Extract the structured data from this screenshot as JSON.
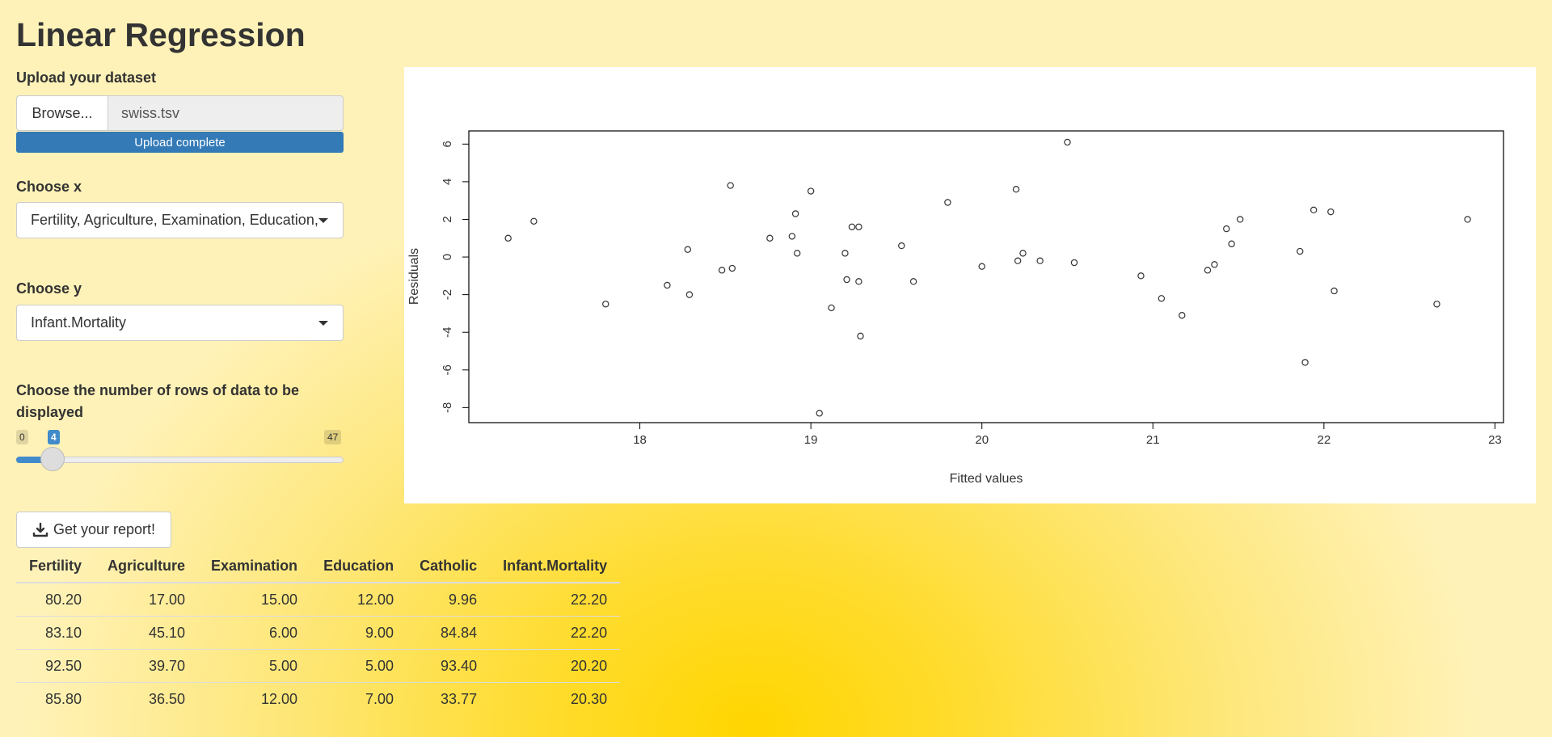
{
  "page": {
    "title": "Linear Regression"
  },
  "upload": {
    "label": "Upload your dataset",
    "browse_label": "Browse...",
    "file_name": "swiss.tsv",
    "status": "Upload complete",
    "progress": 100
  },
  "choose_x": {
    "label": "Choose x",
    "selected": "Fertility, Agriculture, Examination, Education, Catholic"
  },
  "choose_y": {
    "label": "Choose y",
    "selected": "Infant.Mortality"
  },
  "rows_slider": {
    "label": "Choose the number of rows of data to be displayed",
    "min": "0",
    "max": "47",
    "value": "4"
  },
  "report_button": {
    "label": "Get your report!",
    "icon": "download-icon"
  },
  "table": {
    "columns": [
      "Fertility",
      "Agriculture",
      "Examination",
      "Education",
      "Catholic",
      "Infant.Mortality"
    ],
    "rows": [
      [
        "80.20",
        "17.00",
        "15.00",
        "12.00",
        "9.96",
        "22.20"
      ],
      [
        "83.10",
        "45.10",
        "6.00",
        "9.00",
        "84.84",
        "22.20"
      ],
      [
        "92.50",
        "39.70",
        "5.00",
        "5.00",
        "93.40",
        "20.20"
      ],
      [
        "85.80",
        "36.50",
        "12.00",
        "7.00",
        "33.77",
        "20.30"
      ]
    ]
  },
  "chart_data": {
    "type": "scatter",
    "xlabel": "Fitted values",
    "ylabel": "Residuals",
    "xlim": [
      17.0,
      23.05
    ],
    "ylim": [
      -8.8,
      6.7
    ],
    "xticks": [
      "18",
      "19",
      "20",
      "21",
      "22",
      "23"
    ],
    "yticks": [
      "6",
      "4",
      "2",
      "0",
      "-2",
      "-4",
      "-6",
      "-8"
    ],
    "grid": false,
    "x": [
      17.23,
      17.38,
      17.8,
      18.16,
      18.28,
      18.29,
      18.48,
      18.53,
      18.54,
      18.76,
      18.89,
      18.91,
      18.92,
      19.0,
      19.05,
      19.12,
      19.2,
      19.21,
      19.24,
      19.28,
      19.28,
      19.29,
      19.53,
      19.6,
      19.8,
      20.0,
      20.2,
      20.21,
      20.24,
      20.34,
      20.5,
      20.54,
      20.93,
      21.05,
      21.17,
      21.32,
      21.36,
      21.43,
      21.46,
      21.51,
      21.86,
      21.89,
      21.94,
      22.04,
      22.06,
      22.66,
      22.84
    ],
    "y": [
      1.0,
      1.9,
      -2.5,
      -1.5,
      0.4,
      -2.0,
      -0.7,
      3.8,
      -0.6,
      1.0,
      1.1,
      2.3,
      0.2,
      3.5,
      -8.3,
      -2.7,
      0.2,
      -1.2,
      1.6,
      1.6,
      -1.3,
      -4.2,
      0.6,
      -1.3,
      2.9,
      -0.5,
      3.6,
      -0.2,
      0.2,
      -0.2,
      6.1,
      -0.3,
      -1.0,
      -2.2,
      -3.1,
      -0.7,
      -0.4,
      1.5,
      0.7,
      2.0,
      0.3,
      -5.6,
      2.5,
      2.4,
      -1.8,
      -2.5,
      2.0
    ]
  }
}
